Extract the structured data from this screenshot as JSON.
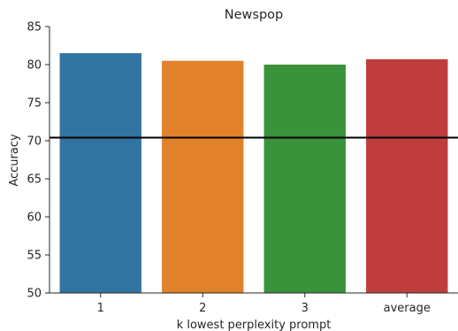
{
  "chart_data": {
    "type": "bar",
    "title": "Newspop",
    "xlabel": "k lowest perplexity prompt",
    "ylabel": "Accuracy",
    "categories": [
      "1",
      "2",
      "3",
      "average"
    ],
    "values": [
      81.5,
      80.5,
      80.0,
      80.7
    ],
    "colors": [
      "#3274a1",
      "#e1812c",
      "#3a923a",
      "#c03d3e"
    ],
    "ylim": [
      50,
      85
    ],
    "yticks": [
      50,
      55,
      60,
      65,
      70,
      75,
      80,
      85
    ],
    "reference_line": {
      "y": 70.4,
      "color": "#000000"
    },
    "grid": false,
    "legend": "none"
  }
}
